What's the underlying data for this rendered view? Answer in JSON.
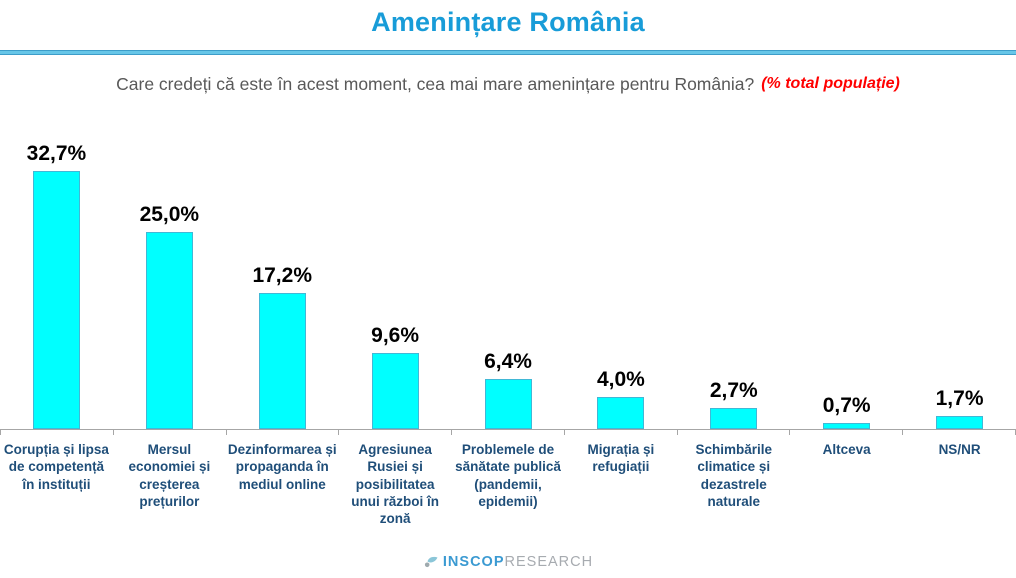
{
  "header": {
    "title": "Amenințare România",
    "title_color": "#189CD8",
    "divider_color": "#3D9DC9"
  },
  "subtitle": {
    "question": "Care credeți că este în acest moment, cea mai mare amenințare pentru România?",
    "note": "(% total populație)",
    "note_color": "#FF0000",
    "question_color": "#595959"
  },
  "chart_data": {
    "type": "bar",
    "title": "Amenințare România",
    "xlabel": "",
    "ylabel": "",
    "ylim": [
      0,
      35
    ],
    "grid": false,
    "legend": false,
    "bar_color": "#00FFFF",
    "bar_border_color": "#41B8D6",
    "category_label_color": "#1F4E79",
    "value_label_color": "#000000",
    "categories": [
      "Corupția și lipsa de competență în instituții",
      "Mersul economiei și creșterea prețurilor",
      "Dezinformarea și propaganda în mediul online",
      "Agresiunea Rusiei și posibilitatea unui război în zonă",
      "Problemele de sănătate publică (pandemii, epidemii)",
      "Migrația și refugiații",
      "Schimbările climatice și dezastrele naturale",
      "Altceva",
      "NS/NR"
    ],
    "values": [
      32.7,
      25.0,
      17.2,
      9.6,
      6.4,
      4.0,
      2.7,
      0.7,
      1.7
    ],
    "value_labels": [
      "32,7%",
      "25,0%",
      "17,2%",
      "9,6%",
      "6,4%",
      "4,0%",
      "2,7%",
      "0,7%",
      "1,7%"
    ]
  },
  "footer": {
    "logo_primary": "INSCOP",
    "logo_secondary": "RESEARCH",
    "logo_primary_color": "#3B9AD2",
    "logo_secondary_color": "#A7ABB0"
  }
}
